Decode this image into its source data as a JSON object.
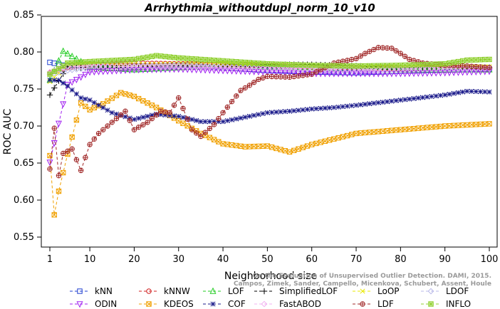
{
  "chart_data": {
    "type": "line",
    "title": "Arrhythmia_withoutdupl_norm_10_v10",
    "xlabel": "Neighborhood size",
    "ylabel": "ROC AUC",
    "xlim": [
      1,
      100
    ],
    "ylim": [
      0.55,
      0.85
    ],
    "xticks": [
      1,
      10,
      20,
      30,
      40,
      50,
      60,
      70,
      80,
      90,
      100
    ],
    "yticks": [
      0.55,
      0.6,
      0.65,
      0.7,
      0.75,
      0.8,
      0.85
    ],
    "watermark": "Campos, Zimek, Sander, Campello, Micenkova, Schubert, Assent, Houle\nOn the Evaluation of Unsupervised Outlier Detection. DAMI, 2015.",
    "legend_position": "bottom",
    "series": [
      {
        "name": "kNN",
        "color": "#1f3fd0",
        "marker": "square",
        "x": [
          1,
          5,
          10,
          20,
          30,
          40,
          50,
          60,
          70,
          80,
          90,
          100
        ],
        "y": [
          0.786,
          0.781,
          0.783,
          0.781,
          0.782,
          0.779,
          0.775,
          0.773,
          0.772,
          0.774,
          0.776,
          0.777
        ]
      },
      {
        "name": "kNNW",
        "color": "#d01f1f",
        "marker": "circle",
        "x": [
          1,
          5,
          10,
          20,
          30,
          40,
          50,
          60,
          70,
          80,
          90,
          100
        ],
        "y": [
          0.772,
          0.779,
          0.783,
          0.785,
          0.784,
          0.783,
          0.782,
          0.78,
          0.779,
          0.778,
          0.778,
          0.778
        ]
      },
      {
        "name": "LOF",
        "color": "#22cc22",
        "marker": "triangle-up",
        "x": [
          1,
          4,
          10,
          20,
          30,
          40,
          50,
          60,
          70,
          80,
          90,
          100
        ],
        "y": [
          0.762,
          0.801,
          0.78,
          0.776,
          0.779,
          0.781,
          0.78,
          0.779,
          0.777,
          0.776,
          0.776,
          0.776
        ]
      },
      {
        "name": "SimplifiedLOF",
        "color": "#000000",
        "marker": "plus",
        "x": [
          1,
          5,
          10,
          20,
          30,
          40,
          50,
          60,
          70,
          80,
          90,
          100
        ],
        "y": [
          0.742,
          0.78,
          0.778,
          0.779,
          0.782,
          0.783,
          0.783,
          0.783,
          0.781,
          0.779,
          0.779,
          0.779
        ]
      },
      {
        "name": "LoOP",
        "color": "#e8e800",
        "marker": "cross",
        "x": [
          1,
          5,
          10,
          20,
          30,
          40,
          50,
          60,
          70,
          80,
          90,
          100
        ],
        "y": [
          0.76,
          0.783,
          0.784,
          0.783,
          0.784,
          0.785,
          0.784,
          0.782,
          0.781,
          0.78,
          0.78,
          0.78
        ]
      },
      {
        "name": "LDOF",
        "color": "#b8b8e8",
        "marker": "diamond",
        "x": [
          1,
          5,
          10,
          20,
          30,
          40,
          50,
          60,
          70,
          80,
          90,
          100
        ],
        "y": [
          0.77,
          0.775,
          0.779,
          0.781,
          0.782,
          0.78,
          0.777,
          0.776,
          0.775,
          0.776,
          0.777,
          0.777
        ]
      },
      {
        "name": "ODIN",
        "color": "#a020f0",
        "marker": "triangle-down",
        "x": [
          1,
          5,
          10,
          20,
          30,
          40,
          50,
          60,
          70,
          80,
          90,
          100
        ],
        "y": [
          0.651,
          0.756,
          0.773,
          0.776,
          0.777,
          0.775,
          0.773,
          0.771,
          0.771,
          0.771,
          0.772,
          0.774
        ]
      },
      {
        "name": "KDEOS",
        "color": "#f0a000",
        "marker": "square-x",
        "x": [
          1,
          2,
          3,
          5,
          8,
          10,
          13,
          17,
          20,
          25,
          30,
          35,
          40,
          45,
          50,
          55,
          60,
          70,
          80,
          90,
          100
        ],
        "y": [
          0.66,
          0.58,
          0.612,
          0.662,
          0.731,
          0.722,
          0.73,
          0.745,
          0.74,
          0.725,
          0.707,
          0.69,
          0.676,
          0.672,
          0.673,
          0.665,
          0.675,
          0.69,
          0.695,
          0.7,
          0.703
        ]
      },
      {
        "name": "COF",
        "color": "#1a1a8a",
        "marker": "asterisk",
        "x": [
          1,
          3,
          5,
          8,
          10,
          15,
          20,
          25,
          30,
          35,
          40,
          45,
          50,
          55,
          60,
          65,
          70,
          80,
          90,
          95,
          100
        ],
        "y": [
          0.762,
          0.762,
          0.754,
          0.738,
          0.735,
          0.718,
          0.709,
          0.716,
          0.713,
          0.706,
          0.706,
          0.712,
          0.718,
          0.72,
          0.723,
          0.725,
          0.728,
          0.735,
          0.742,
          0.747,
          0.746
        ]
      },
      {
        "name": "FastABOD",
        "color": "#f0b0f0",
        "marker": "diamond",
        "x": [
          1,
          5,
          10,
          20,
          30,
          40,
          50,
          60,
          70,
          80,
          90,
          100
        ],
        "y": [
          0.773,
          0.78,
          0.781,
          0.78,
          0.78,
          0.779,
          0.778,
          0.777,
          0.776,
          0.777,
          0.778,
          0.778
        ]
      },
      {
        "name": "LDF",
        "color": "#a02828",
        "marker": "circle-plus",
        "x": [
          1,
          2,
          3,
          4,
          6,
          8,
          10,
          12,
          15,
          18,
          20,
          23,
          26,
          28,
          30,
          33,
          35,
          38,
          40,
          42,
          44,
          46,
          48,
          50,
          55,
          60,
          65,
          70,
          72,
          75,
          78,
          80,
          82,
          85,
          90,
          95,
          100
        ],
        "y": [
          0.642,
          0.697,
          0.633,
          0.663,
          0.669,
          0.64,
          0.675,
          0.69,
          0.705,
          0.72,
          0.695,
          0.705,
          0.72,
          0.718,
          0.738,
          0.695,
          0.686,
          0.702,
          0.718,
          0.733,
          0.748,
          0.755,
          0.763,
          0.767,
          0.766,
          0.77,
          0.785,
          0.791,
          0.798,
          0.806,
          0.805,
          0.798,
          0.79,
          0.785,
          0.782,
          0.781,
          0.779
        ]
      },
      {
        "name": "INFLO",
        "color": "#90d030",
        "marker": "star-box",
        "x": [
          1,
          5,
          10,
          20,
          25,
          30,
          40,
          50,
          60,
          70,
          80,
          90,
          95,
          100
        ],
        "y": [
          0.77,
          0.785,
          0.787,
          0.79,
          0.795,
          0.792,
          0.788,
          0.784,
          0.782,
          0.781,
          0.782,
          0.784,
          0.789,
          0.79
        ]
      }
    ]
  }
}
